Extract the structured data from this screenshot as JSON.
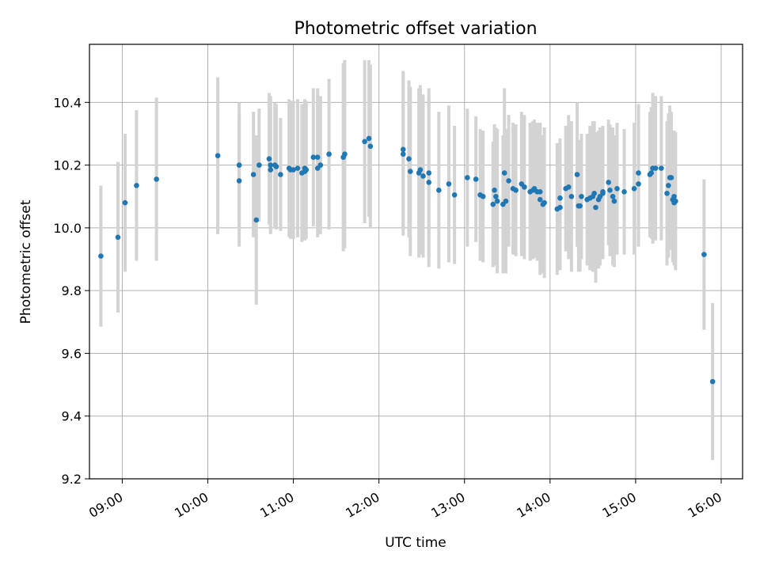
{
  "chart_data": {
    "type": "scatter",
    "title": "Photometric offset variation",
    "xlabel": "UTC time",
    "ylabel": "Photometric offset",
    "x_ticks": [
      "09:00",
      "10:00",
      "11:00",
      "12:00",
      "13:00",
      "14:00",
      "15:00",
      "16:00"
    ],
    "y_ticks": [
      "9.2",
      "9.4",
      "9.6",
      "9.8",
      "10.0",
      "10.2",
      "10.4"
    ],
    "xlim": [
      "08:37",
      "16:15"
    ],
    "ylim": [
      9.2,
      10.585
    ],
    "grid": true,
    "point_color": "#1f77b4",
    "errorbar_color": "#d3d3d3",
    "series": [
      {
        "x": [
          "08:45",
          "08:57",
          "09:02",
          "09:10",
          "09:24",
          "10:07",
          "10:22",
          "10:22",
          "10:32",
          "10:34",
          "10:36",
          "10:43",
          "10:44",
          "10:44",
          "10:47",
          "10:48",
          "10:51",
          "10:57",
          "10:58",
          "11:00",
          "11:03",
          "11:06",
          "11:08",
          "11:08",
          "11:09",
          "11:14",
          "11:17",
          "11:17",
          "11:19",
          "11:25",
          "11:35",
          "11:36",
          "11:50",
          "11:53",
          "11:54",
          "12:17",
          "12:17",
          "12:21",
          "12:22",
          "12:28",
          "12:29",
          "12:31",
          "12:35",
          "12:35",
          "12:42",
          "12:49",
          "12:53",
          "13:02",
          "13:08",
          "13:11",
          "13:13",
          "13:20",
          "13:21",
          "13:22",
          "13:23",
          "13:27",
          "13:28",
          "13:29",
          "13:31",
          "13:34",
          "13:36",
          "13:40",
          "13:42",
          "13:46",
          "13:48",
          "13:49",
          "13:51",
          "13:53",
          "13:53",
          "13:55",
          "13:56",
          "14:05",
          "14:07",
          "14:07",
          "14:11",
          "14:13",
          "14:15",
          "14:19",
          "14:20",
          "14:21",
          "14:22",
          "14:26",
          "14:28",
          "14:30",
          "14:31",
          "14:32",
          "14:34",
          "14:35",
          "14:37",
          "14:37",
          "14:41",
          "14:42",
          "14:44",
          "14:45",
          "14:47",
          "14:52",
          "14:59",
          "15:02",
          "15:02",
          "15:10",
          "15:11",
          "15:12",
          "15:14",
          "15:18",
          "15:22",
          "15:23",
          "15:24",
          "15:25",
          "15:26",
          "15:27",
          "15:27",
          "15:28",
          "15:48",
          "15:54"
        ],
        "y": [
          9.91,
          9.97,
          10.08,
          10.135,
          10.155,
          10.23,
          10.15,
          10.2,
          10.17,
          10.025,
          10.2,
          10.22,
          10.2,
          10.185,
          10.2,
          10.195,
          10.17,
          10.19,
          10.185,
          10.185,
          10.19,
          10.175,
          10.18,
          10.19,
          10.185,
          10.225,
          10.225,
          10.19,
          10.2,
          10.235,
          10.225,
          10.235,
          10.275,
          10.285,
          10.26,
          10.25,
          10.235,
          10.22,
          10.18,
          10.175,
          10.185,
          10.165,
          10.175,
          10.145,
          10.12,
          10.14,
          10.105,
          10.16,
          10.155,
          10.105,
          10.1,
          10.075,
          10.12,
          10.1,
          10.085,
          10.075,
          10.175,
          10.085,
          10.15,
          10.125,
          10.12,
          10.14,
          10.13,
          10.115,
          10.12,
          10.125,
          10.115,
          10.115,
          10.09,
          10.075,
          10.08,
          10.06,
          10.095,
          10.065,
          10.125,
          10.13,
          10.1,
          10.17,
          10.07,
          10.07,
          10.1,
          10.09,
          10.095,
          10.1,
          10.11,
          10.065,
          10.09,
          10.1,
          10.11,
          10.115,
          10.145,
          10.12,
          10.1,
          10.085,
          10.125,
          10.115,
          10.125,
          10.175,
          10.14,
          10.17,
          10.175,
          10.19,
          10.19,
          10.19,
          10.11,
          10.135,
          10.16,
          10.16,
          10.09,
          10.1,
          10.08,
          10.085,
          9.915,
          9.51
        ],
        "err": [
          0.225,
          0.24,
          0.22,
          0.24,
          0.26,
          0.25,
          0.21,
          0.2,
          0.2,
          0.27,
          0.18,
          0.21,
          0.22,
          0.2,
          0.2,
          0.2,
          0.18,
          0.22,
          0.22,
          0.22,
          0.22,
          0.22,
          0.22,
          0.22,
          0.22,
          0.22,
          0.22,
          0.22,
          0.22,
          0.24,
          0.3,
          0.3,
          0.26,
          0.25,
          0.26,
          0.25,
          0.26,
          0.25,
          0.27,
          0.27,
          0.27,
          0.26,
          0.27,
          0.27,
          0.25,
          0.25,
          0.22,
          0.22,
          0.2,
          0.21,
          0.21,
          0.2,
          0.21,
          0.22,
          0.23,
          0.22,
          0.27,
          0.23,
          0.21,
          0.21,
          0.21,
          0.23,
          0.23,
          0.22,
          0.22,
          0.22,
          0.22,
          0.22,
          0.24,
          0.22,
          0.24,
          0.21,
          0.19,
          0.2,
          0.2,
          0.23,
          0.24,
          0.23,
          0.21,
          0.21,
          0.2,
          0.21,
          0.23,
          0.24,
          0.23,
          0.24,
          0.22,
          0.22,
          0.21,
          0.21,
          0.2,
          0.21,
          0.22,
          0.21,
          0.21,
          0.2,
          0.21,
          0.22,
          0.2,
          0.2,
          0.21,
          0.24,
          0.23,
          0.23,
          0.23,
          0.23,
          0.23,
          0.21,
          0.2,
          0.21,
          0.2,
          0.22,
          0.24,
          0.25
        ]
      }
    ]
  }
}
